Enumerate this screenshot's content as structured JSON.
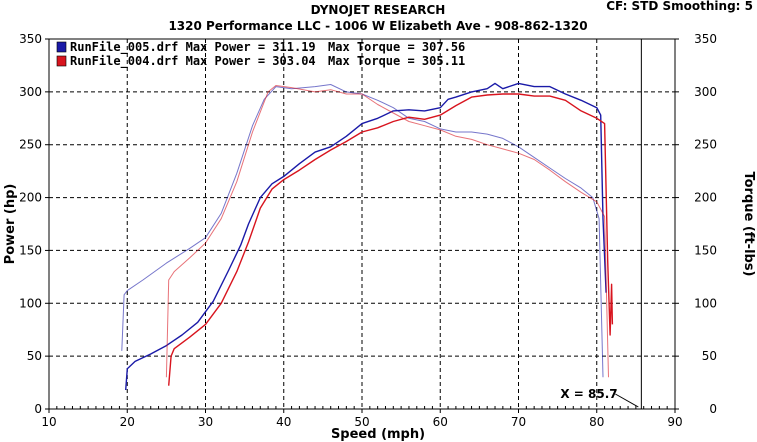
{
  "header": {
    "title": "DYNOJET RESEARCH",
    "subtitle": "1320 Performance LLC - 1006 W Elizabeth Ave - 908-862-1320",
    "settings": "CF: STD   Smoothing: 5"
  },
  "cursor_readout": "X = 85.7",
  "colors": {
    "run005": "#1a1aa8",
    "run004": "#d8141e",
    "grid": "#000000"
  },
  "chart_data": {
    "type": "line",
    "xlabel": "Speed (mph)",
    "ylabel": "Power (hp)",
    "y2label": "Torque (ft-lbs)",
    "xlim": [
      10,
      90
    ],
    "ylim": [
      0,
      350
    ],
    "y2lim": [
      0,
      350
    ],
    "x_ticks": [
      "10",
      "20",
      "30",
      "40",
      "50",
      "60",
      "70",
      "80",
      "90"
    ],
    "y_ticks": [
      "0",
      "50",
      "100",
      "150",
      "200",
      "250",
      "300",
      "350"
    ],
    "grid": true,
    "cursor_x": 85.7,
    "legend": [
      {
        "file": "RunFile_005.drf",
        "power_label": "Max Power = 311.19",
        "torque_label": "Max Torque = 307.56",
        "color": "#1a1aa8"
      },
      {
        "file": "RunFile_004.drf",
        "power_label": "Max Power = 303.04",
        "torque_label": "Max Torque = 305.11",
        "color": "#d8141e"
      }
    ],
    "series": [
      {
        "name": "RunFile_005.drf",
        "measure": "power",
        "color": "#1a1aa8",
        "x": [
          19.8,
          20,
          21,
          23,
          25,
          27,
          29,
          31,
          33,
          34.5,
          35.5,
          37,
          38.5,
          40,
          42,
          44,
          46,
          48,
          50,
          52,
          54,
          56,
          58,
          60,
          61,
          62,
          64,
          66,
          67,
          68,
          70,
          72,
          74,
          76,
          78,
          80,
          80.5,
          80.8,
          81.2
        ],
        "y": [
          18,
          38,
          45,
          52,
          60,
          70,
          82,
          102,
          132,
          155,
          175,
          200,
          213,
          220,
          232,
          243,
          248,
          258,
          270,
          275,
          282,
          283,
          282,
          285,
          293,
          295,
          300,
          303,
          308,
          303,
          308,
          305,
          305,
          298,
          292,
          285,
          278,
          180,
          110
        ]
      },
      {
        "name": "RunFile_005.drf",
        "measure": "torque",
        "color": "#1a1aa8",
        "x": [
          19.3,
          19.6,
          20,
          22,
          25,
          28,
          30,
          32,
          34,
          36,
          37.5,
          39,
          41,
          44,
          46,
          48,
          50,
          52,
          54,
          56,
          58,
          60,
          62,
          64,
          66,
          68,
          70,
          72,
          74,
          76,
          78,
          79.5,
          80.3,
          80.8
        ],
        "y": [
          55,
          108,
          112,
          122,
          138,
          152,
          162,
          185,
          223,
          268,
          293,
          305,
          303,
          305,
          307,
          300,
          298,
          292,
          285,
          275,
          272,
          265,
          262,
          262,
          260,
          256,
          248,
          238,
          228,
          218,
          209,
          200,
          180,
          30
        ]
      },
      {
        "name": "RunFile_004.drf",
        "measure": "power",
        "color": "#d8141e",
        "x": [
          25.3,
          25.6,
          26,
          28,
          30,
          32,
          34,
          35.5,
          37,
          38.5,
          40,
          42,
          44,
          46,
          48,
          50,
          52,
          54,
          56,
          58,
          60,
          62,
          64,
          66,
          68,
          70,
          72,
          74,
          76,
          78,
          80,
          81,
          81.4,
          81.7,
          81.9,
          82
        ],
        "y": [
          22,
          50,
          57,
          68,
          80,
          100,
          130,
          158,
          190,
          208,
          217,
          226,
          236,
          245,
          253,
          262,
          266,
          272,
          276,
          274,
          278,
          287,
          295,
          297,
          298,
          298,
          296,
          296,
          292,
          282,
          275,
          270,
          140,
          70,
          118,
          80
        ]
      },
      {
        "name": "RunFile_004.drf",
        "measure": "torque",
        "color": "#d8141e",
        "x": [
          25,
          25.3,
          26,
          28,
          30,
          32,
          34,
          36,
          38,
          39,
          41,
          44,
          46,
          48,
          50,
          52,
          54,
          56,
          58,
          60,
          62,
          64,
          66,
          68,
          70,
          72,
          74,
          76,
          78,
          80,
          81,
          81.5
        ],
        "y": [
          30,
          122,
          130,
          143,
          157,
          180,
          215,
          262,
          300,
          306,
          304,
          300,
          302,
          298,
          298,
          288,
          280,
          272,
          268,
          264,
          258,
          255,
          250,
          246,
          242,
          236,
          226,
          215,
          205,
          196,
          182,
          30
        ]
      }
    ]
  }
}
